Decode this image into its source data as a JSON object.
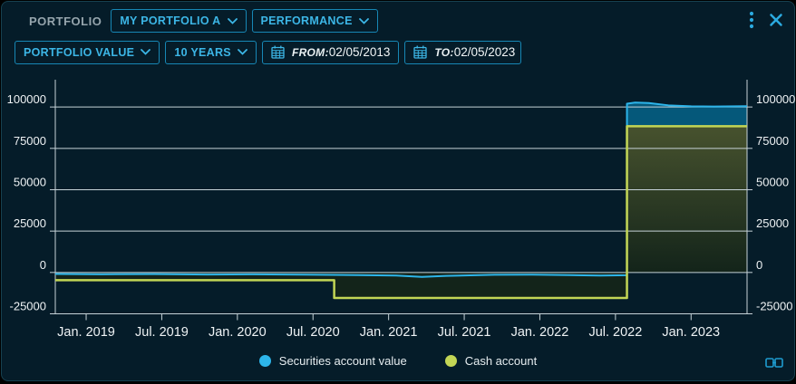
{
  "header": {
    "title": "PORTFOLIO",
    "portfolio_select": {
      "value": "MY PORTFOLIO A"
    },
    "view_select": {
      "value": "PERFORMANCE"
    }
  },
  "toolbar": {
    "value_type_select": {
      "value": "PORTFOLIO VALUE"
    },
    "range_select": {
      "value": "10 YEARS"
    },
    "from_field": {
      "label": "FROM:",
      "value": "02/05/2013"
    },
    "to_field": {
      "label": "TO:",
      "value": "02/05/2023"
    }
  },
  "icons": {
    "menu": "kebab-menu-icon",
    "close": "close-icon",
    "calendar": "calendar-icon",
    "chevron": "chevron-down-icon",
    "link": "link-icon"
  },
  "colors": {
    "accent_cyan": "#3cb6e6",
    "securities_line": "#2db5ea",
    "securities_fill": "#05587a",
    "cash_line": "#c3d655",
    "cash_fill_top": "#47522e",
    "cash_fill_bottom": "#13241a",
    "grid": "#c6d2d8",
    "background": "#051c29"
  },
  "chart_data": {
    "type": "area",
    "title": "",
    "xlabel": "",
    "ylabel": "",
    "grid": true,
    "legend_position": "bottom",
    "x_axis": {
      "range": [
        2018.796,
        2023.37
      ],
      "ticks": [
        {
          "pos": 2019.0,
          "label": "Jan. 2019"
        },
        {
          "pos": 2019.5,
          "label": "Jul. 2019"
        },
        {
          "pos": 2020.0,
          "label": "Jan. 2020"
        },
        {
          "pos": 2020.5,
          "label": "Jul. 2020"
        },
        {
          "pos": 2021.0,
          "label": "Jan. 2021"
        },
        {
          "pos": 2021.5,
          "label": "Jul. 2021"
        },
        {
          "pos": 2022.0,
          "label": "Jan. 2022"
        },
        {
          "pos": 2022.5,
          "label": "Jul. 2022"
        },
        {
          "pos": 2023.0,
          "label": "Jan. 2023"
        }
      ]
    },
    "y_axis": {
      "range": [
        -25000,
        116500
      ],
      "ticks": [
        -25000,
        0,
        25000,
        50000,
        75000,
        100000
      ]
    },
    "series": [
      {
        "name": "Securities account value",
        "color": "#2db5ea",
        "fill": "#05587a",
        "points": [
          [
            2018.796,
            -900
          ],
          [
            2019.1,
            -1100
          ],
          [
            2019.45,
            -950
          ],
          [
            2019.8,
            -1250
          ],
          [
            2020.1,
            -1100
          ],
          [
            2020.45,
            -1300
          ],
          [
            2020.8,
            -1600
          ],
          [
            2021.05,
            -1900
          ],
          [
            2021.22,
            -2700
          ],
          [
            2021.38,
            -2100
          ],
          [
            2021.7,
            -1400
          ],
          [
            2021.95,
            -1300
          ],
          [
            2022.2,
            -1600
          ],
          [
            2022.4,
            -1900
          ],
          [
            2022.576,
            -1700
          ],
          [
            2022.576,
            102000
          ],
          [
            2022.63,
            102700
          ],
          [
            2022.72,
            102400
          ],
          [
            2022.85,
            101000
          ],
          [
            2023.0,
            100400
          ],
          [
            2023.15,
            100300
          ],
          [
            2023.37,
            100500
          ]
        ]
      },
      {
        "name": "Cash account",
        "color": "#c3d655",
        "fill_gradient": {
          "top": "#47522e",
          "bottom": "#13241a"
        },
        "points": [
          [
            2018.796,
            -4700
          ],
          [
            2020.64,
            -4700
          ],
          [
            2020.64,
            -15400
          ],
          [
            2022.576,
            -15400
          ],
          [
            2022.576,
            88400
          ],
          [
            2023.37,
            88400
          ]
        ]
      }
    ]
  }
}
